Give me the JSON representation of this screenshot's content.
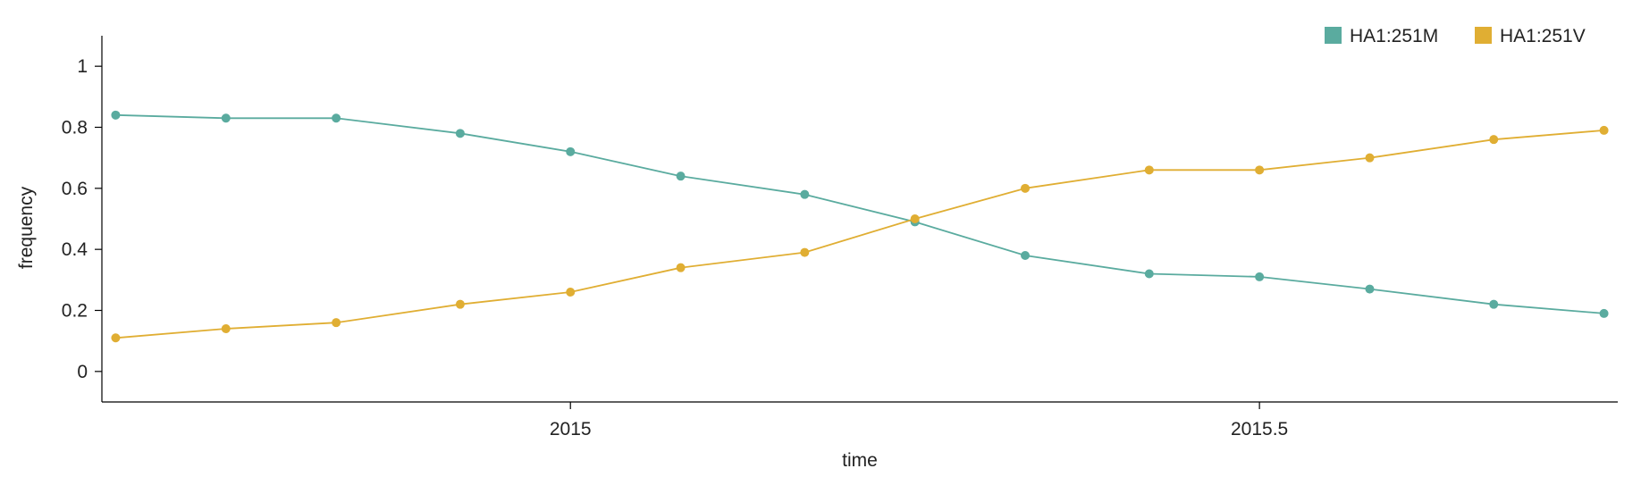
{
  "chart_data": {
    "type": "line",
    "xlabel": "time",
    "ylabel": "frequency",
    "xlim": [
      2014.66,
      2015.76
    ],
    "ylim": [
      -0.1,
      1.1
    ],
    "x_ticks": [
      2015,
      2015.5
    ],
    "x_tick_labels": [
      "2015",
      "2015.5"
    ],
    "y_ticks": [
      0,
      0.2,
      0.4,
      0.6,
      0.8,
      1
    ],
    "y_tick_labels": [
      "0",
      "0.2",
      "0.4",
      "0.6",
      "0.8",
      "1"
    ],
    "grid": false,
    "legend_position": "top-right",
    "x": [
      2014.67,
      2014.75,
      2014.83,
      2014.92,
      2015.0,
      2015.08,
      2015.17,
      2015.25,
      2015.33,
      2015.42,
      2015.5,
      2015.58,
      2015.67,
      2015.75
    ],
    "series": [
      {
        "name": "HA1:251M",
        "color": "#5aab9f",
        "values": [
          0.84,
          0.83,
          0.83,
          0.78,
          0.72,
          0.64,
          0.58,
          0.49,
          0.38,
          0.32,
          0.31,
          0.27,
          0.22,
          0.19
        ]
      },
      {
        "name": "HA1:251V",
        "color": "#e0ae33",
        "values": [
          0.11,
          0.14,
          0.16,
          0.22,
          0.26,
          0.34,
          0.39,
          0.5,
          0.6,
          0.66,
          0.66,
          0.7,
          0.76,
          0.79
        ]
      }
    ]
  }
}
